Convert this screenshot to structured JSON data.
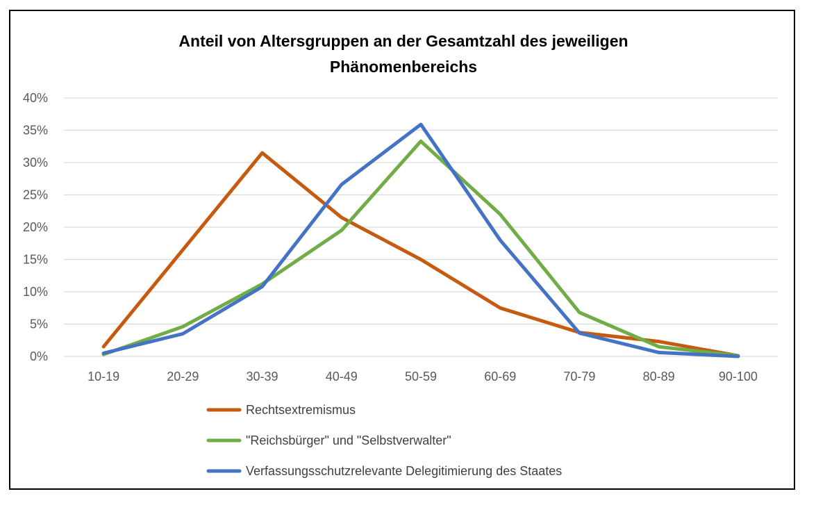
{
  "chart_data": {
    "type": "line",
    "title": [
      "Anteil von Altersgruppen an der Gesamtzahl des jeweiligen",
      "Phänomenbereichs"
    ],
    "xlabel": "",
    "ylabel": "",
    "categories": [
      "10-19",
      "20-29",
      "30-39",
      "40-49",
      "50-59",
      "60-69",
      "70-79",
      "80-89",
      "90-100"
    ],
    "y_ticks": [
      "0%",
      "5%",
      "10%",
      "15%",
      "20%",
      "25%",
      "30%",
      "35%",
      "40%"
    ],
    "ylim": [
      0,
      40
    ],
    "grid": true,
    "legend_position": "bottom",
    "series": [
      {
        "name": "Rechtsextremismus",
        "color": "#c55a11",
        "values": [
          1.5,
          16.5,
          31.5,
          21.5,
          15.0,
          7.5,
          3.7,
          2.3,
          0.1
        ]
      },
      {
        "name": "\"Reichsbürger\" und \"Selbstverwalter\"",
        "color": "#70ad47",
        "values": [
          0.3,
          4.6,
          11.2,
          19.5,
          33.3,
          22.0,
          6.8,
          1.5,
          0.1
        ]
      },
      {
        "name": "Verfassungsschutzrelevante Delegitimierung des Staates",
        "color": "#4472c4",
        "values": [
          0.5,
          3.5,
          10.8,
          26.6,
          35.9,
          18.0,
          3.6,
          0.6,
          0.0
        ]
      }
    ]
  }
}
